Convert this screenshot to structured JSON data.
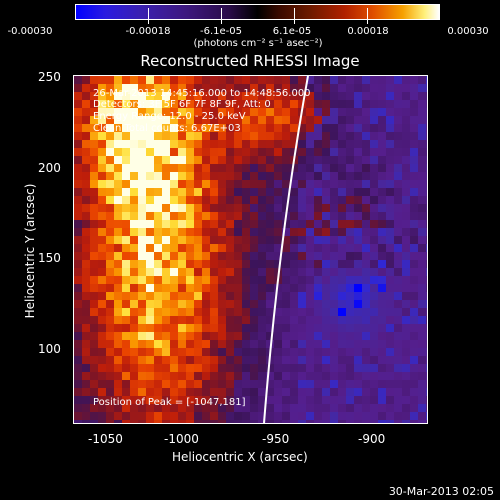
{
  "colorbar": {
    "tick_labels": [
      "-0.00030",
      "-0.00018",
      "-6.1e-05",
      "6.1e-05",
      "0.00018",
      "0.00030"
    ],
    "units": "(photons cm⁻² s⁻¹ asec⁻²)"
  },
  "title": "Reconstructed RHESSI Image",
  "annotations": {
    "time": "26-Mar-2013 14:45:16.000 to 14:48:56.000",
    "detectors": "Detectors: 3F 5F 6F 7F 8F 9F, Att: 0",
    "energy": "Energy Range: 12.0 - 25.0 keV",
    "clean": "Clean     Total counts: 6.67E+03",
    "peak": "Position of Peak = [-1047,181]"
  },
  "axes": {
    "xlabel": "Heliocentric X (arcsec)",
    "ylabel": "Heliocentric Y (arcsec)",
    "xticks": [
      "-1050",
      "-1000",
      "-950",
      "-900"
    ],
    "yticks": [
      "250",
      "200",
      "150",
      "100"
    ],
    "xlim": [
      -1065,
      -882
    ],
    "ylim": [
      55,
      250
    ]
  },
  "footer": "30-Mar-2013 02:05",
  "colors": {
    "background": "#000000",
    "text": "#ffffff",
    "limb": "#ffffff"
  }
}
